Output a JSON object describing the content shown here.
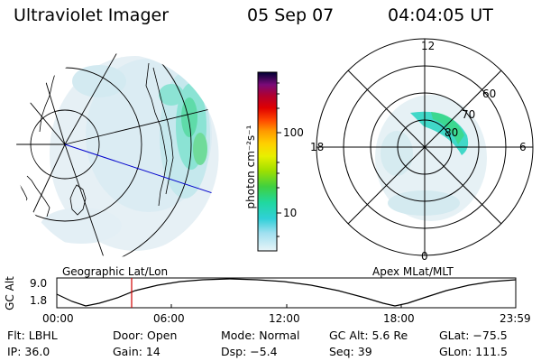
{
  "header": {
    "instrument": "Ultraviolet Imager",
    "date": "05 Sep 07",
    "time": "04:04:05 UT"
  },
  "colorbar": {
    "unit": "photon cm⁻²s⁻¹",
    "tick_labels": [
      "100",
      "10"
    ],
    "colors": [
      "#000033",
      "#3a0a5a",
      "#7a0a78",
      "#b00030",
      "#e00000",
      "#ff4a00",
      "#ff9a00",
      "#ffd000",
      "#e8f000",
      "#a0e000",
      "#40d040",
      "#20d8a0",
      "#30d0d8",
      "#a0e0f0",
      "#e8f4f8"
    ]
  },
  "left_map": {
    "caption": "Geographic Lat/Lon"
  },
  "right_map": {
    "caption": "Apex MLat/MLT",
    "mlt_labels": {
      "top": "12",
      "bottom": "0",
      "left": "18",
      "right": "6"
    },
    "lat_labels": [
      "60",
      "70",
      "80"
    ]
  },
  "altitude_plot": {
    "axis_label": "GC Alt",
    "y_ticks": [
      "9.0",
      "1.8"
    ],
    "x_ticks": [
      "00:00",
      "06:00",
      "12:00",
      "18:00",
      "23:59"
    ],
    "marker_color": "#d00000"
  },
  "info": {
    "flt": "Flt: LBHL",
    "door": "Door: Open",
    "mode": "Mode: Normal",
    "gc_alt": "GC Alt: 5.6 Re",
    "glat": "GLat: −75.5",
    "ip": "IP: 36.0",
    "gain": "Gain: 14",
    "dsp": "Dsp:    −5.4",
    "seq": "Seq: 39",
    "glon": "GLon: 111.5"
  }
}
